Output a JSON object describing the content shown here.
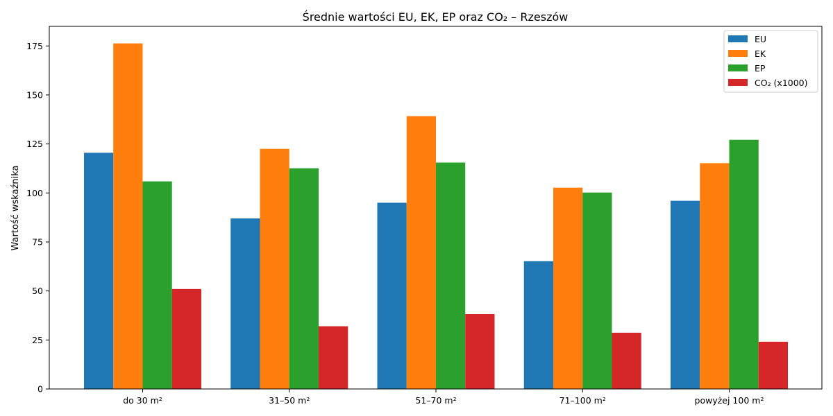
{
  "chart_data": {
    "type": "bar",
    "title": "Średnie wartości EU, EK, EP oraz CO₂ – Rzeszów",
    "xlabel": "",
    "ylabel": "Wartość wskaźnika",
    "categories": [
      "do 30 m²",
      "31–50 m²",
      "51–70 m²",
      "71–100 m²",
      "powyżej 100 m²"
    ],
    "series": [
      {
        "name": "EU",
        "color": "#1f77b4",
        "values": [
          120.5,
          87.0,
          95.0,
          65.2,
          96.0
        ]
      },
      {
        "name": "EK",
        "color": "#ff7f0e",
        "values": [
          176.3,
          122.5,
          139.2,
          102.7,
          115.2
        ]
      },
      {
        "name": "EP",
        "color": "#2ca02c",
        "values": [
          105.9,
          112.6,
          115.5,
          100.2,
          127.1
        ]
      },
      {
        "name": "CO₂ (x1000)",
        "color": "#d62728",
        "values": [
          51.0,
          32.0,
          38.2,
          28.7,
          24.1
        ]
      }
    ],
    "ylim": [
      0,
      185
    ],
    "yticks": [
      0,
      25,
      50,
      75,
      100,
      125,
      150,
      175
    ],
    "grid": false,
    "legend": "top-right"
  }
}
